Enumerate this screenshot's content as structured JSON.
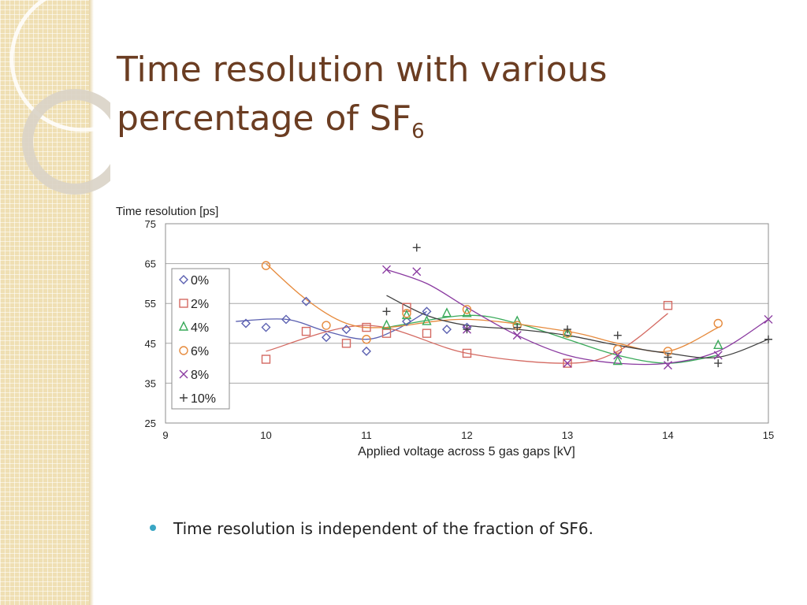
{
  "slide": {
    "title_line1": "Time resolution with various",
    "title_line2": "percentage of SF",
    "title_subscript": "6",
    "bullets": [
      "Time resolution is independent of the fraction of SF6."
    ],
    "colors": {
      "title": "#6b3d22",
      "bullet": "#3aa6c4",
      "band": "#efdfb3"
    }
  },
  "chart_data": {
    "type": "scatter",
    "title": "",
    "xlabel": "Applied voltage across 5 gas gaps [kV]",
    "ylabel": "Time resolution [ps]",
    "xlim": [
      9,
      15
    ],
    "ylim": [
      25,
      75
    ],
    "xticks": [
      9,
      10,
      11,
      12,
      13,
      14,
      15
    ],
    "yticks": [
      25,
      35,
      45,
      55,
      65,
      75
    ],
    "grid": "horizontal",
    "legend": "left",
    "series": [
      {
        "name": "0%",
        "marker": "diamond",
        "color": "#5a5fb0",
        "x": [
          9.8,
          10.0,
          10.2,
          10.4,
          10.6,
          10.8,
          11.0,
          11.4,
          11.6,
          11.8,
          12.0
        ],
        "y": [
          50,
          49,
          51,
          55.5,
          46.5,
          48.5,
          43,
          50.5,
          53,
          48.5,
          49
        ],
        "trend": {
          "x": [
            9.7,
            10.2,
            10.6,
            11.0,
            11.3,
            11.6
          ],
          "y": [
            50.5,
            51,
            48,
            46,
            48.5,
            53
          ]
        }
      },
      {
        "name": "2%",
        "marker": "square",
        "color": "#d46a62",
        "x": [
          10.0,
          10.4,
          10.8,
          11.0,
          11.2,
          11.4,
          11.6,
          12.0,
          13.0,
          14.0
        ],
        "y": [
          41,
          48,
          45,
          49,
          47.5,
          54,
          47.5,
          42.5,
          40,
          54.5
        ],
        "trend": {
          "x": [
            10.0,
            11.0,
            12.0,
            13.0,
            13.5,
            14.0
          ],
          "y": [
            43,
            49.5,
            42.5,
            40,
            43,
            52.5
          ]
        }
      },
      {
        "name": "4%",
        "marker": "triangle",
        "color": "#3aaa5a",
        "x": [
          11.2,
          11.4,
          11.6,
          11.8,
          12.0,
          12.5,
          13.0,
          13.5,
          14.5
        ],
        "y": [
          49.5,
          52,
          50.5,
          52.5,
          52.5,
          50.5,
          47.5,
          40.5,
          44.5
        ],
        "trend": {
          "x": [
            11.2,
            12.0,
            12.5,
            13.0,
            13.5,
            14.0,
            14.5
          ],
          "y": [
            49,
            52,
            50,
            46,
            42,
            40,
            42
          ]
        }
      },
      {
        "name": "6%",
        "marker": "circle",
        "color": "#e68a3c",
        "x": [
          10.0,
          10.6,
          11.0,
          11.4,
          12.0,
          12.5,
          13.0,
          13.5,
          14.0,
          14.5
        ],
        "y": [
          64.5,
          49.5,
          46,
          52.5,
          53.5,
          49.5,
          47.5,
          43.5,
          43,
          50
        ],
        "trend": {
          "x": [
            10.0,
            10.4,
            10.8,
            11.2,
            12.0,
            13.0,
            13.5,
            14.0,
            14.5
          ],
          "y": [
            65,
            56,
            50,
            49,
            51,
            48,
            45,
            43,
            49
          ]
        }
      },
      {
        "name": "8%",
        "marker": "x",
        "color": "#8a3aa0",
        "x": [
          11.2,
          11.5,
          12.0,
          12.5,
          13.0,
          13.5,
          14.0,
          14.5,
          15.0
        ],
        "y": [
          63.5,
          63,
          48.5,
          47,
          40,
          42,
          39.5,
          42,
          51
        ],
        "trend": {
          "x": [
            11.2,
            11.6,
            12.0,
            12.5,
            13.0,
            13.5,
            14.0,
            14.5,
            15.0
          ],
          "y": [
            63.5,
            60,
            54,
            47,
            42,
            40,
            40,
            43,
            51
          ]
        }
      },
      {
        "name": "10%",
        "marker": "plus",
        "color": "#404040",
        "x": [
          11.2,
          11.5,
          12.0,
          12.5,
          13.0,
          13.5,
          14.0,
          14.5,
          15.0
        ],
        "y": [
          53,
          69,
          48.5,
          49,
          48.5,
          47,
          41.5,
          40,
          46
        ],
        "trend": {
          "x": [
            11.2,
            11.6,
            12.0,
            12.5,
            13.0,
            13.5,
            14.0,
            14.5,
            15.0
          ],
          "y": [
            57,
            52,
            49.5,
            48.5,
            47,
            44.5,
            42.5,
            41.5,
            46
          ]
        }
      }
    ]
  }
}
